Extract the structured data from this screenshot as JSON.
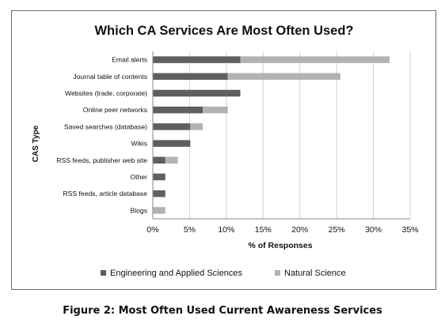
{
  "chart_data": {
    "type": "bar",
    "orientation": "horizontal",
    "stacked": true,
    "title": "Which CA Services Are Most Often Used?",
    "xlabel": "% of Responses",
    "ylabel": "CAS Type",
    "categories": [
      "Email alerts",
      "Journal table of contents",
      "Websites (trade, corporate)",
      "Online peer networks",
      "Saved searches (database)",
      "Wikis",
      "RSS feeds, publisher web site",
      "Other",
      "RSS feeds, article database",
      "Blogs"
    ],
    "series": [
      {
        "name": "Engineering and Applied Sciences",
        "color": "#5f5f5f",
        "values": [
          11.9,
          10.2,
          11.9,
          6.8,
          5.1,
          5.1,
          1.7,
          1.7,
          1.7,
          0
        ]
      },
      {
        "name": "Natural Science",
        "color": "#b2b2b2",
        "values": [
          20.3,
          15.3,
          0,
          3.4,
          1.7,
          0,
          1.7,
          0,
          0,
          1.7
        ]
      }
    ],
    "xlim": [
      0,
      35
    ],
    "xticks": [
      "0%",
      "5%",
      "10%",
      "15%",
      "20%",
      "25%",
      "30%",
      "35%"
    ],
    "grid": true,
    "legend_position": "bottom"
  },
  "caption": "Figure 2: Most Often Used Current Awareness Services"
}
